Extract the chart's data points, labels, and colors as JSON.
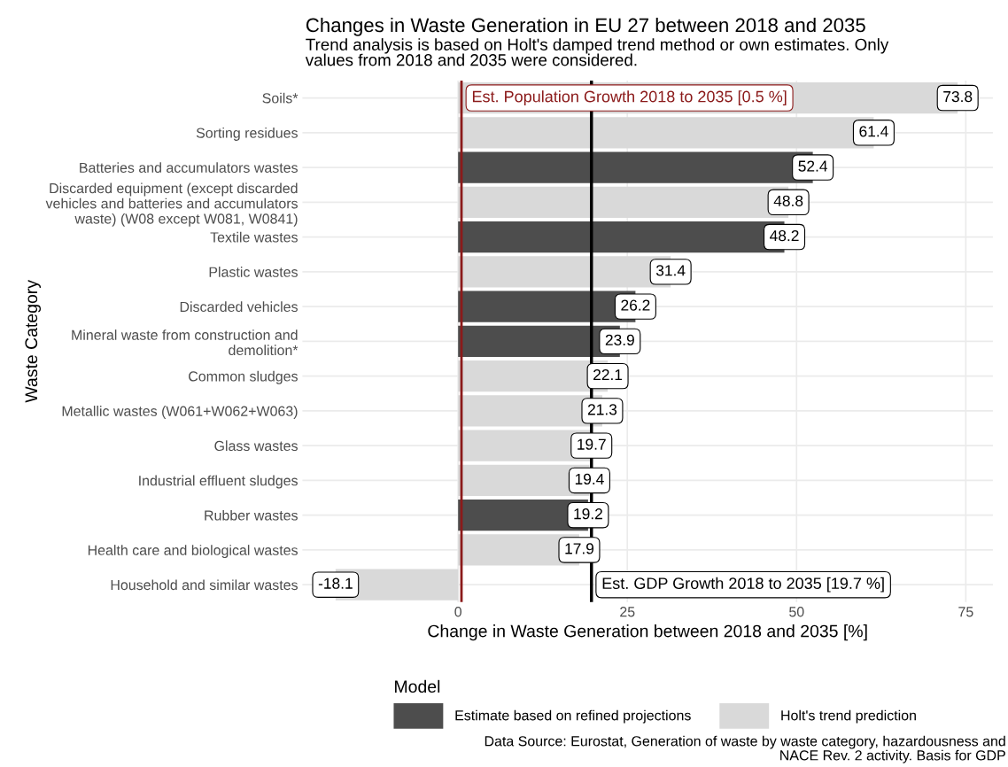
{
  "chart_data": {
    "type": "bar",
    "orientation": "horizontal",
    "title": "Changes in Waste Generation in EU 27 between 2018 and 2035",
    "subtitle": "Trend analysis is based on Holt's damped trend method or own estimates. Only\nvalues from 2018 and 2035 were considered.",
    "xlabel": "Change in Waste Generation between 2018 and 2035 [%]",
    "ylabel": "Waste Category",
    "legend_title": "Model",
    "categories": [
      "Soils*",
      "Sorting residues",
      "Batteries and accumulators wastes",
      "Discarded equipment (except discarded\nvehicles and batteries and accumulators\nwaste) (W08 except W081, W0841)",
      "Textile wastes",
      "Plastic wastes",
      "Discarded vehicles",
      "Mineral waste from construction and\ndemolition*",
      "Common sludges",
      "Metallic wastes (W061+W062+W063)",
      "Glass wastes",
      "Industrial effluent sludges",
      "Rubber wastes",
      "Health care and biological wastes",
      "Household and similar wastes"
    ],
    "series": [
      {
        "name": "Estimate based on refined projections",
        "color": "#4d4d4d",
        "values": [
          null,
          null,
          52.4,
          null,
          48.2,
          null,
          26.2,
          23.9,
          null,
          null,
          null,
          null,
          19.2,
          null,
          null
        ]
      },
      {
        "name": "Holt's trend prediction",
        "color": "#d9d9d9",
        "values": [
          73.8,
          61.4,
          null,
          48.8,
          null,
          31.4,
          null,
          null,
          22.1,
          21.3,
          19.7,
          19.4,
          null,
          17.9,
          -18.1
        ]
      }
    ],
    "xlim": [
      -23,
      79
    ],
    "xticks": [
      0,
      25,
      50,
      75
    ],
    "ref_lines": [
      {
        "axis": "x",
        "value": 0.5,
        "label": "Est. Population Growth 2018 to 2035 [0.5 %]",
        "color": "#8b1a1a"
      },
      {
        "axis": "x",
        "value": 19.7,
        "label": "Est. GDP Growth 2018 to 2035 [19.7 %]",
        "color": "#000000"
      }
    ],
    "data_labels": true,
    "grid": true,
    "legend": "bottom",
    "annotations": [
      "Data Source: Eurostat, Generation of waste by waste category, hazardousness and\nNACE Rev. 2 activity. Basis for GDP"
    ]
  }
}
